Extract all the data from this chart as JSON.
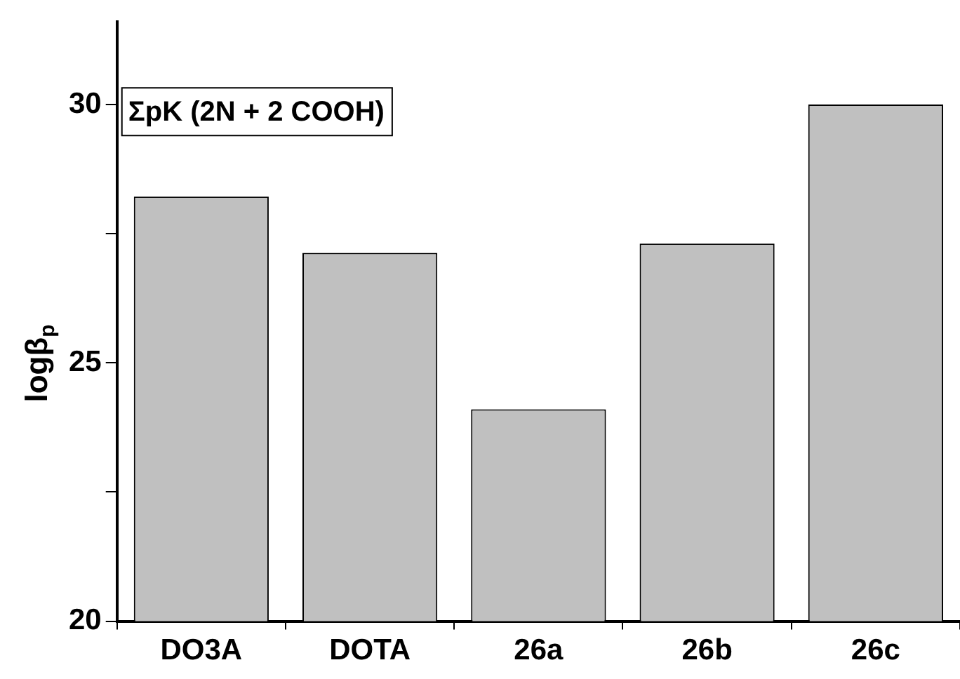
{
  "chart_data": {
    "type": "bar",
    "ylabel": "logβ$_{p}$",
    "categories": [
      "DO3A",
      "DOTA",
      "26a",
      "26b",
      "26c"
    ],
    "values": [
      28.22,
      27.13,
      24.1,
      27.31,
      30.0
    ],
    "color": "#c0c0c0",
    "ylim": [
      20,
      31.6
    ],
    "yticks": [
      20,
      {
        "value": 22.5,
        "label": null
      },
      25,
      {
        "value": 27.5,
        "label": null
      },
      30
    ],
    "annotations": [
      "ΣpK (2N + 2 COOH)"
    ],
    "grid": false,
    "legend": false
  }
}
